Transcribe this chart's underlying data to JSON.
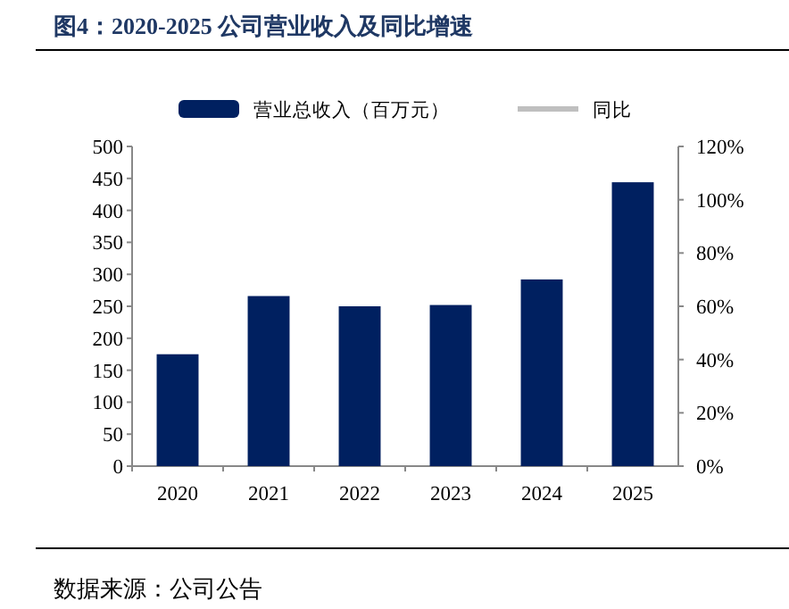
{
  "chart_data": {
    "type": "bar",
    "title": "图4：2020-2025 公司营业收入及同比增速",
    "categories": [
      "2020",
      "2021",
      "2022",
      "2023",
      "2024",
      "2025"
    ],
    "series": [
      {
        "name": "营业总收入（百万元）",
        "color": "#002060",
        "values": [
          175,
          266,
          250,
          252,
          292,
          444
        ]
      },
      {
        "name": "同比",
        "type": "line",
        "axis": "y2",
        "color": "#bfbfbf",
        "values": [
          null,
          null,
          null,
          null,
          null,
          null
        ]
      }
    ],
    "ylim": [
      0,
      500
    ],
    "yticks": [
      0,
      50,
      100,
      150,
      200,
      250,
      300,
      350,
      400,
      450,
      500
    ],
    "y2lim": [
      0,
      120
    ],
    "y2ticks": [
      {
        "value": 0,
        "label": "0%"
      },
      {
        "value": 20,
        "label": "20%"
      },
      {
        "value": 40,
        "label": "40%"
      },
      {
        "value": 60,
        "label": "60%"
      },
      {
        "value": 80,
        "label": "80%"
      },
      {
        "value": 100,
        "label": "100%"
      },
      {
        "value": 120,
        "label": "120%"
      }
    ],
    "legend": "top",
    "annotations": [
      "数据来源：公司公告"
    ]
  }
}
